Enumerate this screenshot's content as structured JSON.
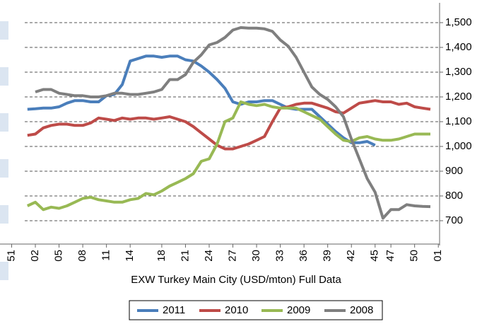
{
  "chart_data": {
    "type": "line",
    "title": "EXW Turkey Main City (USD/mton) Full Data",
    "x": [
      1,
      2,
      3,
      4,
      5,
      6,
      7,
      8,
      9,
      10,
      11,
      12,
      13,
      14,
      15,
      16,
      17,
      18,
      19,
      20,
      21,
      22,
      23,
      24,
      25,
      26,
      27,
      28,
      29,
      30,
      31,
      32,
      33,
      34,
      35,
      36,
      37,
      38,
      39,
      40,
      41,
      42,
      43,
      44,
      45,
      46,
      47,
      48,
      49,
      50,
      51,
      52
    ],
    "xlim": [
      -2,
      53.5
    ],
    "xticks": [
      {
        "value": -1,
        "label": "51"
      },
      {
        "value": 2,
        "label": "02"
      },
      {
        "value": 5,
        "label": "05"
      },
      {
        "value": 8,
        "label": "08"
      },
      11,
      14,
      18,
      21,
      24,
      27,
      30,
      33,
      36,
      39,
      42,
      45,
      47,
      50,
      {
        "value": 53,
        "label": "01"
      }
    ],
    "ylim": [
      600,
      1580
    ],
    "yticks": [
      700,
      800,
      900,
      {
        "value": 1000,
        "label": "1,000"
      },
      {
        "value": 1100,
        "label": "1,100"
      },
      {
        "value": 1200,
        "label": "1,200"
      },
      {
        "value": 1300,
        "label": "1,300"
      },
      {
        "value": 1400,
        "label": "1,400"
      },
      {
        "value": 1500,
        "label": "1,500"
      }
    ],
    "grid": true,
    "y_axis_side": "right",
    "legend": "bottom",
    "series": [
      {
        "name": "2011",
        "color": "#4a7ebb",
        "values": [
          1150,
          1152,
          1155,
          1155,
          1160,
          1175,
          1185,
          1185,
          1180,
          1180,
          1205,
          1210,
          1250,
          1345,
          1355,
          1365,
          1365,
          1360,
          1365,
          1365,
          1350,
          1345,
          1325,
          1300,
          1270,
          1235,
          1180,
          1170,
          1180,
          1180,
          1185,
          1185,
          1170,
          1155,
          1150,
          1150,
          1150,
          1120,
          1090,
          1060,
          1035,
          1015,
          1015,
          1020,
          1005,
          null,
          null,
          null,
          null,
          null,
          null,
          null
        ]
      },
      {
        "name": "2010",
        "color": "#be4b48",
        "values": [
          1045,
          1050,
          1075,
          1085,
          1090,
          1090,
          1085,
          1085,
          1095,
          1115,
          1110,
          1105,
          1115,
          1110,
          1115,
          1115,
          1110,
          1115,
          1120,
          1110,
          1100,
          1080,
          1055,
          1030,
          1005,
          990,
          990,
          1000,
          1010,
          1025,
          1040,
          1100,
          1155,
          1160,
          1170,
          1175,
          1175,
          1165,
          1155,
          1140,
          1135,
          1155,
          1175,
          1180,
          1185,
          1180,
          1180,
          1170,
          1175,
          1160,
          1155,
          1150
        ]
      },
      {
        "name": "2009",
        "color": "#98b954",
        "values": [
          760,
          775,
          745,
          755,
          750,
          760,
          775,
          790,
          795,
          785,
          780,
          775,
          775,
          785,
          790,
          810,
          805,
          820,
          840,
          855,
          870,
          890,
          940,
          950,
          1010,
          1100,
          1115,
          1180,
          1170,
          1165,
          1170,
          1160,
          1155,
          1155,
          1155,
          1140,
          1125,
          1110,
          1080,
          1050,
          1025,
          1020,
          1035,
          1040,
          1030,
          1025,
          1025,
          1030,
          1040,
          1050,
          1050,
          1050
        ]
      },
      {
        "name": "2008",
        "color": "#7f7f7f",
        "values": [
          null,
          1220,
          1230,
          1230,
          1215,
          1210,
          1205,
          1205,
          1200,
          1200,
          1205,
          1215,
          1215,
          1210,
          1210,
          1215,
          1220,
          1230,
          1270,
          1270,
          1290,
          1340,
          1370,
          1410,
          1420,
          1440,
          1470,
          1480,
          1478,
          1478,
          1475,
          1465,
          1430,
          1405,
          1360,
          1300,
          1240,
          1210,
          1190,
          1160,
          1120,
          1030,
          950,
          870,
          815,
          710,
          745,
          745,
          765,
          760,
          758,
          757
        ]
      }
    ]
  }
}
